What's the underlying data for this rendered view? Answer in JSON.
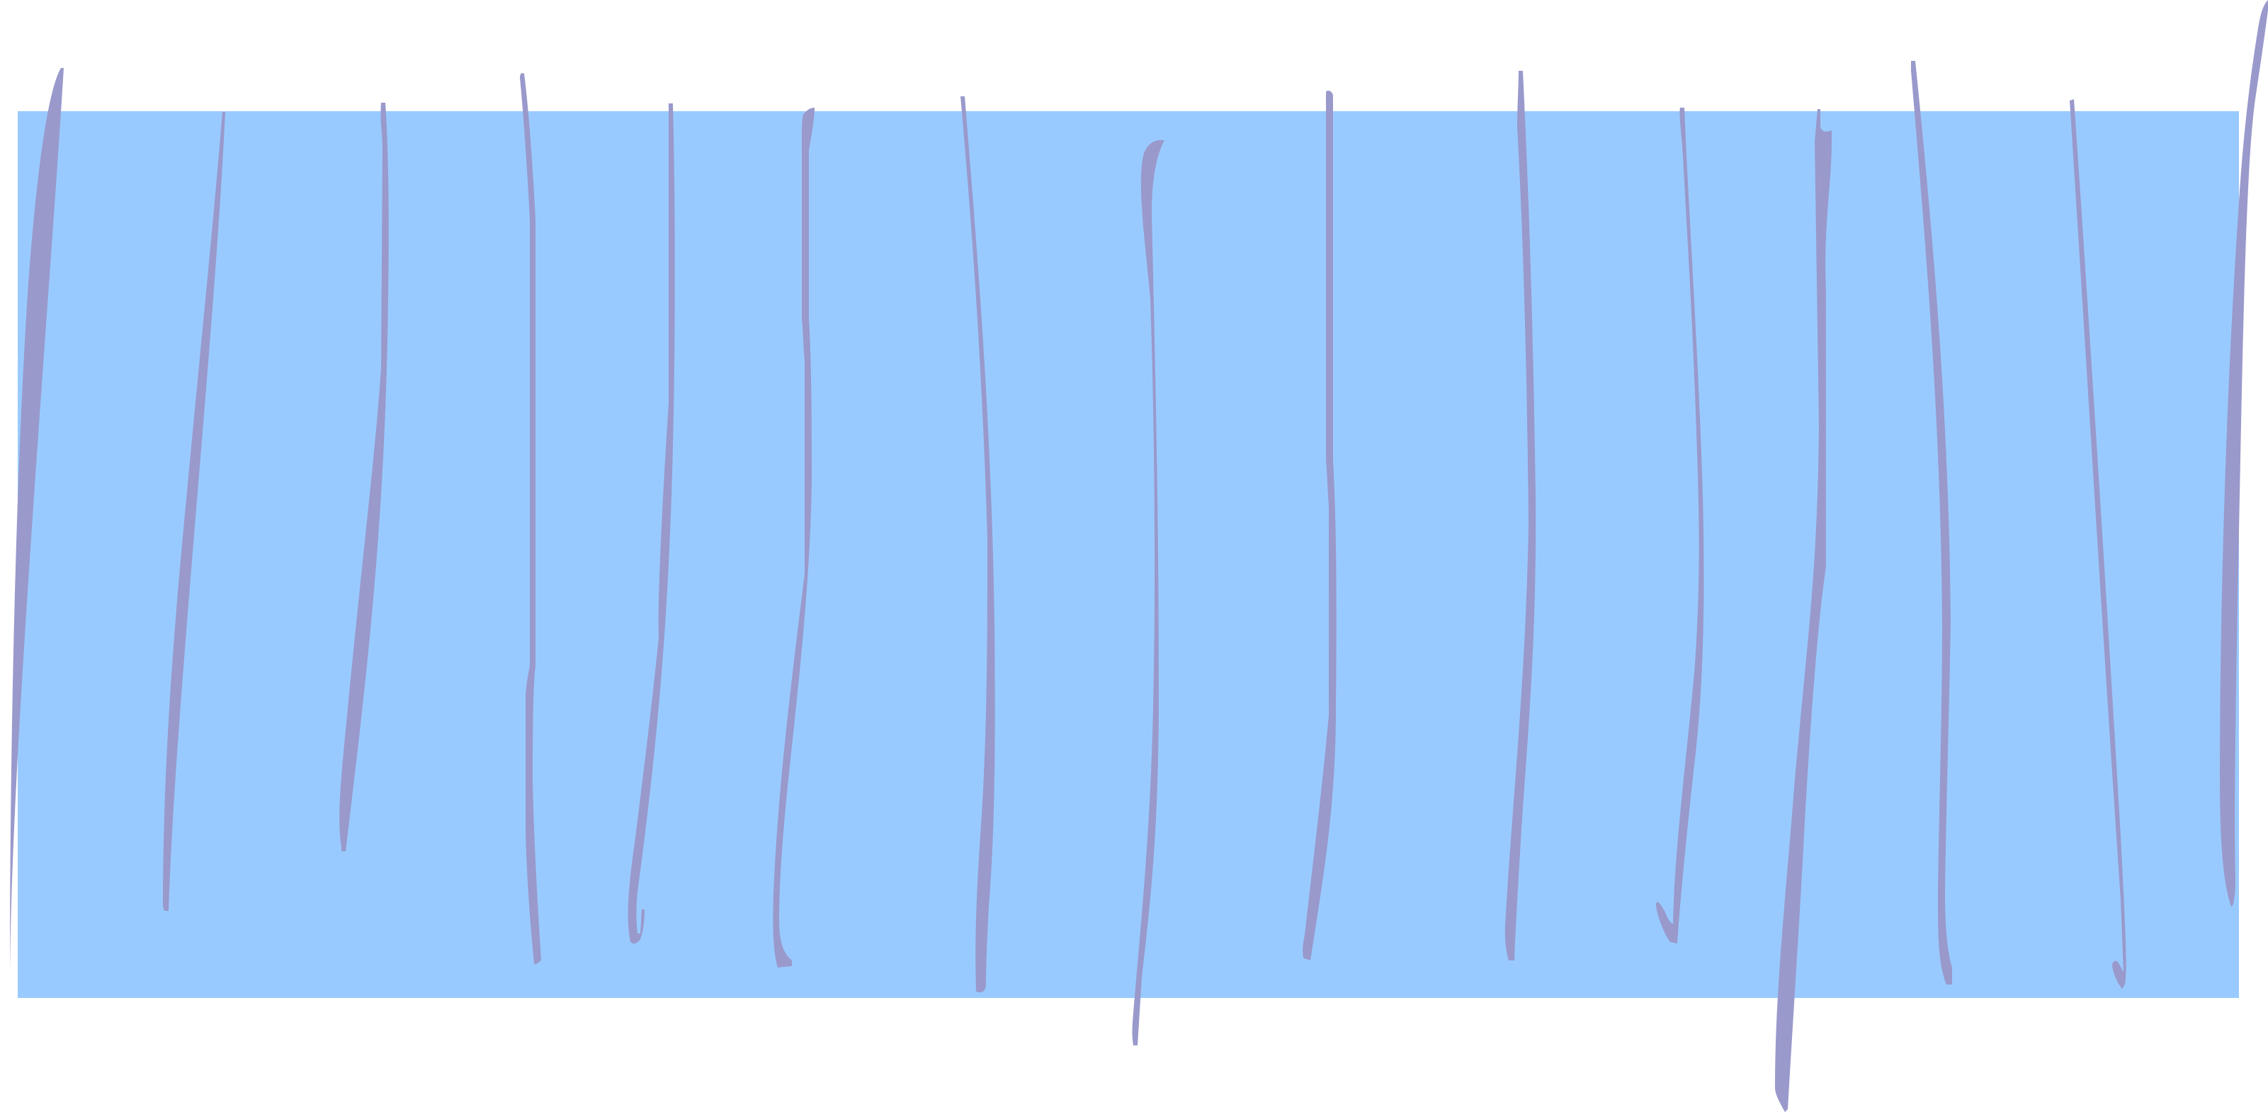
{
  "colors": {
    "background": "#ffffff",
    "panel": "#99caff",
    "strands": "#9999cc"
  },
  "icons": {
    "panel": "blue-rectangle",
    "strands": "wavy-vertical-lines"
  }
}
